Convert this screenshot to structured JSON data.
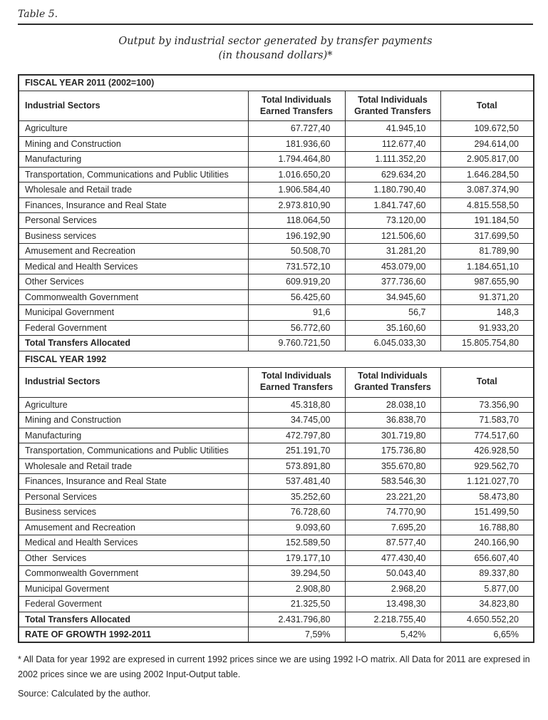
{
  "colors": {
    "text": "#262626",
    "border": "#2b2b2b",
    "background": "#ffffff"
  },
  "page": {
    "table_label": "Table 5.",
    "title_line1": "Output by industrial sector generated by transfer payments",
    "title_line2": "(in thousand dollars)*",
    "footnote": "* All Data for year 1992 are expresed in current 1992 prices since we are using 1992 I-O matrix. All Data for 2011 are expresed in 2002 prices since we are using 2002 Input-Output table.",
    "source": "Source: Calculated by the author."
  },
  "table": {
    "sections": [
      {
        "section_title": "FISCAL YEAR 2011 (2002=100)",
        "columns": [
          "Industrial Sectors",
          "Total Individuals Earned Transfers",
          "Total Individuals Granted Transfers",
          "Total"
        ],
        "rows": [
          {
            "label": "Agriculture",
            "values": [
              "67.727,40",
              "41.945,10",
              "109.672,50"
            ],
            "bold": false
          },
          {
            "label": "Mining and Construction",
            "values": [
              "181.936,60",
              "112.677,40",
              "294.614,00"
            ],
            "bold": false
          },
          {
            "label": "Manufacturing",
            "values": [
              "1.794.464,80",
              "1.111.352,20",
              "2.905.817,00"
            ],
            "bold": false
          },
          {
            "label": "Transportation, Communications and Public Utilities",
            "values": [
              "1.016.650,20",
              "629.634,20",
              "1.646.284,50"
            ],
            "bold": false
          },
          {
            "label": "Wholesale and Retail trade",
            "values": [
              "1.906.584,40",
              "1.180.790,40",
              "3.087.374,90"
            ],
            "bold": false
          },
          {
            "label": "Finances, Insurance and Real State",
            "values": [
              "2.973.810,90",
              "1.841.747,60",
              "4.815.558,50"
            ],
            "bold": false
          },
          {
            "label": "Personal Services",
            "values": [
              "118.064,50",
              "73.120,00",
              "191.184,50"
            ],
            "bold": false
          },
          {
            "label": "Business services",
            "values": [
              "196.192,90",
              "121.506,60",
              "317.699,50"
            ],
            "bold": false
          },
          {
            "label": "Amusement and Recreation",
            "values": [
              "50.508,70",
              "31.281,20",
              "81.789,90"
            ],
            "bold": false
          },
          {
            "label": "Medical and Health Services",
            "values": [
              "731.572,10",
              "453.079,00",
              "1.184.651,10"
            ],
            "bold": false
          },
          {
            "label": "Other Services",
            "values": [
              "609.919,20",
              "377.736,60",
              "987.655,90"
            ],
            "bold": false
          },
          {
            "label": "Commonwealth Government",
            "values": [
              "56.425,60",
              "34.945,60",
              "91.371,20"
            ],
            "bold": false
          },
          {
            "label": "Municipal Government",
            "values": [
              "91,6",
              "56,7",
              "148,3"
            ],
            "bold": false
          },
          {
            "label": "Federal Government",
            "values": [
              "56.772,60",
              "35.160,60",
              "91.933,20"
            ],
            "bold": false
          },
          {
            "label": "Total Transfers Allocated",
            "values": [
              "9.760.721,50",
              "6.045.033,30",
              "15.805.754,80"
            ],
            "bold": true
          }
        ]
      },
      {
        "section_title": "FISCAL YEAR 1992",
        "columns": [
          "Industrial Sectors",
          "Total Individuals Earned Transfers",
          "Total Individuals Granted Transfers",
          "Total"
        ],
        "rows": [
          {
            "label": "Agriculture",
            "values": [
              "45.318,80",
              "28.038,10",
              "73.356,90"
            ],
            "bold": false
          },
          {
            "label": "Mining and Construction",
            "values": [
              "34.745,00",
              "36.838,70",
              "71.583,70"
            ],
            "bold": false
          },
          {
            "label": "Manufacturing",
            "values": [
              "472.797,80",
              "301.719,80",
              "774.517,60"
            ],
            "bold": false
          },
          {
            "label": "Transportation, Communications and Public Utilities",
            "values": [
              "251.191,70",
              "175.736,80",
              "426.928,50"
            ],
            "bold": false
          },
          {
            "label": "Wholesale and Retail trade",
            "values": [
              "573.891,80",
              "355.670,80",
              "929.562,70"
            ],
            "bold": false
          },
          {
            "label": "Finances, Insurance and Real State",
            "values": [
              "537.481,40",
              "583.546,30",
              "1.121.027,70"
            ],
            "bold": false
          },
          {
            "label": "Personal Services",
            "values": [
              "35.252,60",
              "23.221,20",
              "58.473,80"
            ],
            "bold": false
          },
          {
            "label": "Business services",
            "values": [
              "76.728,60",
              "74.770,90",
              "151.499,50"
            ],
            "bold": false
          },
          {
            "label": "Amusement and Recreation",
            "values": [
              "9.093,60",
              "7.695,20",
              "16.788,80"
            ],
            "bold": false
          },
          {
            "label": "Medical and Health Services",
            "values": [
              "152.589,50",
              "87.577,40",
              "240.166,90"
            ],
            "bold": false
          },
          {
            "label": "Other  Services",
            "values": [
              "179.177,10",
              "477.430,40",
              "656.607,40"
            ],
            "bold": false
          },
          {
            "label": "Commonwealth Government",
            "values": [
              "39.294,50",
              "50.043,40",
              "89.337,80"
            ],
            "bold": false
          },
          {
            "label": "Municipal Goverment",
            "values": [
              "2.908,80",
              "2.968,20",
              "5.877,00"
            ],
            "bold": false
          },
          {
            "label": "Federal Goverment",
            "values": [
              "21.325,50",
              "13.498,30",
              "34.823,80"
            ],
            "bold": false
          },
          {
            "label": "Total Transfers Allocated",
            "values": [
              "2.431.796,80",
              "2.218.755,40",
              "4.650.552,20"
            ],
            "bold": true
          },
          {
            "label": "RATE OF GROWTH 1992-2011",
            "values": [
              "7,59%",
              "5,42%",
              "6,65%"
            ],
            "bold": true
          }
        ]
      }
    ]
  }
}
